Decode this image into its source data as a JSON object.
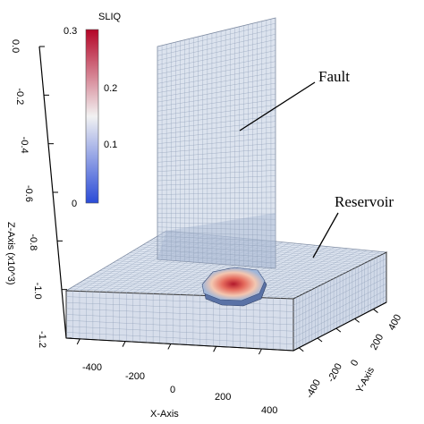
{
  "colorbar": {
    "title": "SLIQ",
    "ticks": [
      "0.3",
      "0.2",
      "0.1",
      "0"
    ],
    "colors": {
      "top": "#b40426",
      "mid": "#f0f0f0",
      "bottom": "#2a4bd7"
    }
  },
  "labels": {
    "fault": "Fault",
    "reservoir": "Reservoir"
  },
  "z_axis": {
    "title": "Z-Axis (x10^3)",
    "ticks": [
      "0.0",
      "-0.2",
      "-0.4",
      "-0.6",
      "-0.8",
      "-1.0",
      "-1.2"
    ]
  },
  "x_axis": {
    "title": "X-Axis",
    "ticks": [
      "-400",
      "-200",
      "0",
      "200",
      "400"
    ]
  },
  "y_axis": {
    "title": "Y-Axis",
    "ticks": [
      "-400",
      "-200",
      "0",
      "200",
      "400"
    ]
  },
  "colors": {
    "grid": "#8f9fb8",
    "panel_fill": "#c9d4e6",
    "fault_fill": "#b9c8de",
    "plume_hot": "#c0282d",
    "plume_mid": "#e9a48c",
    "plume_cool": "#4f6fa8"
  }
}
